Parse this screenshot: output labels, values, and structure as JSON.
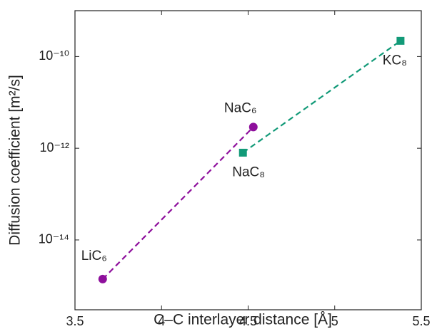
{
  "chart_data": {
    "type": "scatter",
    "xlabel": "C–C interlayer distance [Å]",
    "ylabel": "Diffusion coefficient [m²/s]",
    "xlim": [
      3.5,
      5.5
    ],
    "xticks": [
      3.5,
      4,
      4.5,
      5,
      5.5
    ],
    "ylim": [
      3e-16,
      1e-09
    ],
    "log_y": true,
    "yticks": [
      {
        "value": 1e-14,
        "label": "10⁻¹⁴"
      },
      {
        "value": 1e-12,
        "label": "10⁻¹²"
      },
      {
        "value": 1e-10,
        "label": "10⁻¹⁰"
      }
    ],
    "grid": false,
    "series": [
      {
        "color": "#8e0f9c",
        "marker": "circle",
        "x": [
          3.66,
          4.53
        ],
        "values": [
          1.4e-15,
          2.9e-12
        ],
        "point_labels": [
          "LiC₆",
          "NaC₆"
        ]
      },
      {
        "color": "#129a78",
        "marker": "square",
        "x": [
          4.47,
          5.38
        ],
        "values": [
          8e-13,
          2.2e-10
        ],
        "point_labels": [
          "NaC₈",
          "KC₈"
        ]
      }
    ]
  }
}
